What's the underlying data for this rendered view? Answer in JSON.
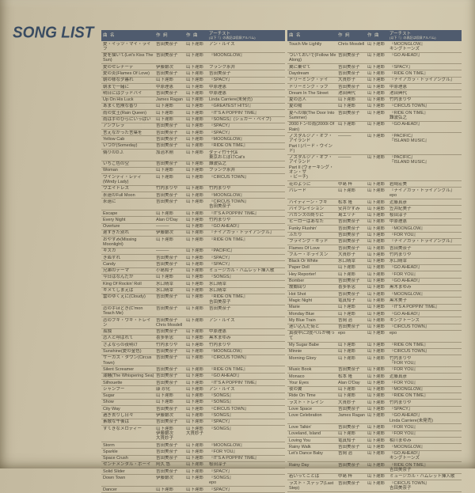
{
  "page": {
    "title": "SONG LIST"
  },
  "colors": {
    "paper": "#ccc2a8",
    "header_band": "#4f5b6e",
    "header_text": "#d9d3bd",
    "body_text": "#474236",
    "logo": "#3a4c62"
  },
  "table": {
    "headers": {
      "song": "曲 名",
      "lyrics": "作 詞",
      "music": "作 曲",
      "artist_line1": "アーチスト",
      "artist_line2": "(以下『』の表記は収録アルバム)"
    },
    "left_rows": [
      {
        "t": "愛・イッツ・マイ・ライフ",
        "l": "吉田美奈子",
        "c": "山下達郎",
        "a": "アン・ルイス"
      },
      {
        "t": "愛を描いて(Let's Kiss The Sun)",
        "l": "吉田美奈子",
        "c": "山下達郎",
        "a": "『MOONGLOW』"
      },
      {
        "t": "愛のセレナーデ",
        "l": "伊藤銀次",
        "c": "山下達郎",
        "a": "フランク永井"
      },
      {
        "t": "愛の炎(Flames Of Love)",
        "l": "吉田美奈子",
        "c": "山下達郎",
        "a": "吉田美奈子"
      },
      {
        "t": "朝の様な夕暮れ",
        "l": "山下達郎",
        "c": "山下達郎",
        "a": "『SPACY』"
      },
      {
        "t": "朝まで一緒に",
        "l": "中原理恵",
        "c": "山下達郎",
        "a": "中原理恵"
      },
      {
        "t": "明日にはグッドバイ",
        "l": "吉田美奈子",
        "c": "山下達郎",
        "a": "中原理恵"
      },
      {
        "t": "Up On His Luck",
        "l": "James Ragan",
        "c": "山下達郎",
        "a": "Linda Carriere(未発売)"
      },
      {
        "t": "あまく危険な香り",
        "l": "山下達郎",
        "c": "山下達郎",
        "a": "『GREATEST HITS!』"
      },
      {
        "t": "雨の女王(Rain Queen)",
        "l": "山下達郎",
        "c": "山下達郎",
        "a": "『IT'S A POPPIN' TIME』"
      },
      {
        "t": "雨は手のひらにいっぱい",
        "l": "山下達郎",
        "c": "山下達郎",
        "a": "『SONGS』(シュガー・ベイブ)"
      },
      {
        "t": "アンブレラ",
        "l": "吉田美奈子",
        "c": "山下達郎",
        "a": "『SPACY』"
      },
      {
        "t": "言えなかった言葉を",
        "l": "吉田美奈子",
        "c": "山下達郎",
        "a": "『SPACY』"
      },
      {
        "t": "Yellow Cab",
        "l": "吉田美奈子",
        "c": "山下達郎",
        "a": "『MOONGLOW』"
      },
      {
        "t": "いつか(Someday)",
        "l": "吉田美奈子",
        "c": "山下達郎",
        "a": "『RIDE ON TIME』"
      },
      {
        "t": "偽りのD.J.",
        "l": "加治木剛",
        "c": "山下達郎",
        "a": "ダディ竹千代&\n東京おとぼけCat's"
      },
      {
        "t": "いちご色の空",
        "l": "吉田美奈子",
        "c": "山下達郎",
        "a": "難波弘之"
      },
      {
        "t": "Woman",
        "l": "山下達郎",
        "c": "山下達郎",
        "a": "フランク永井"
      },
      {
        "t": "ウインディ・レディ(Windy Lady)",
        "l": "山下達郎",
        "c": "山下達郎",
        "a": "『CIRCUS TOWN』"
      },
      {
        "t": "ウエイトレス",
        "l": "竹内まりや",
        "c": "山下達郎",
        "a": "竹内まりや"
      },
      {
        "t": "永遠のFull Moon",
        "l": "吉田美奈子",
        "c": "山下達郎",
        "a": "『MOONGLOW』"
      },
      {
        "t": "永遠に",
        "l": "吉田美奈子",
        "c": "山下達郎",
        "a": "『CIRCUS TOWN』\n吉田美奈子"
      },
      {
        "t": "Escape",
        "l": "山下達郎",
        "c": "山下達郎",
        "a": "『IT'S A POPPIN' TIME』"
      },
      {
        "t": "Every Night",
        "l": "Alan O'Day",
        "c": "山下達郎",
        "a": "竹内まりや"
      },
      {
        "t": "Overture",
        "l": "―――",
        "c": "山下達郎",
        "a": "『GO AHEAD!』"
      },
      {
        "t": "遅すぎた別れ",
        "l": "伊藤銀次",
        "c": "山下達郎",
        "a": "『ナイアガラ・トライアングル』"
      },
      {
        "t": "おやすみ(Missing Moonlight)",
        "l": "山下達郎",
        "c": "山下達郎",
        "a": "『RIDE ON TIME』"
      },
      {
        "t": "キスカ",
        "l": "―――",
        "c": "山下達郎",
        "a": "『PACIFIC』"
      },
      {
        "t": "きぬずれ",
        "l": "吉田美奈子",
        "c": "山下達郎",
        "a": "『SPACY』"
      },
      {
        "t": "Candy",
        "l": "吉田美奈子",
        "c": "山下達郎",
        "a": "『SPACY』"
      },
      {
        "t": "兄弟のテーマ",
        "l": "小島和子",
        "c": "山下達郎",
        "a": "ミュージカル・ハムレット挿入歌"
      },
      {
        "t": "今日はなんだか",
        "l": "山下達郎",
        "c": "山下達郎",
        "a": "『SONGS』"
      },
      {
        "t": "King Of Rockin' Roll",
        "l": "水口晴幸",
        "c": "山下達郎",
        "a": "水口晴幸"
      },
      {
        "t": "キメてしまえば",
        "l": "水口晴幸",
        "c": "山下達郎",
        "a": "水口晴幸"
      },
      {
        "t": "雲のゆくえに(Cloudy)",
        "l": "吉田美奈子",
        "c": "山下達郎",
        "a": "『RIDE ON TIME』\n吉田美奈子"
      },
      {
        "t": "恋の手ほどき(C'mon Teach Me)",
        "l": "吉田美奈子",
        "c": "山下達郎",
        "a": "吉田美奈子"
      },
      {
        "t": "恋のブギ・ウギ・トレイン",
        "l": "吉田美奈子\nChris Mosdell",
        "c": "山下達郎",
        "a": "アン・ルイス"
      },
      {
        "t": "孤独",
        "l": "吉田美奈子",
        "c": "山下達郎",
        "a": "中原理恵"
      },
      {
        "t": "恋人と呼ばれて",
        "l": "喜多条忠",
        "c": "山下達郎",
        "a": "黒木まゆみ"
      },
      {
        "t": "さよならの夜明け",
        "l": "竹内まりや",
        "c": "山下達郎",
        "a": "竹内まりや"
      },
      {
        "t": "Sunshine(愛の金色)",
        "l": "吉田美奈子",
        "c": "山下達郎",
        "a": "『MOONGLOW』"
      },
      {
        "t": "サーカス・タウン(Circus Town)",
        "l": "吉田美奈子",
        "c": "山下達郎",
        "a": "『CIRCUS TOWN』"
      },
      {
        "t": "Silent Screamer",
        "l": "吉田美奈子",
        "c": "山下達郎",
        "a": "『RIDE ON TIME』"
      },
      {
        "t": "潮騒(The Whispering Sea)",
        "l": "吉田美奈子",
        "c": "山下達郎",
        "a": "『GO AHEAD!』"
      },
      {
        "t": "Silhouette",
        "l": "吉田美奈子",
        "c": "山下達郎",
        "a": "『IT'S A POPPIN' TIME』"
      },
      {
        "t": "シャンプー",
        "l": "康 珍化",
        "c": "山下達郎",
        "a": "アン・ルイス"
      },
      {
        "t": "Sugar",
        "l": "山下達郎",
        "c": "山下達郎",
        "a": "『SONGS』"
      },
      {
        "t": "Show",
        "l": "山下達郎",
        "c": "山下達郎",
        "a": "『SONGS』"
      },
      {
        "t": "City Way",
        "l": "吉田美奈子",
        "c": "山下達郎",
        "a": "『CIRCUS TOWN』"
      },
      {
        "t": "過ぎ去りし日々",
        "l": "伊藤銀次",
        "c": "山下達郎",
        "a": "『SONGS』"
      },
      {
        "t": "素敵な午後は",
        "l": "吉田美奈子",
        "c": "山下達郎",
        "a": "『SPACY』"
      },
      {
        "t": "すてきなメロディー",
        "l": "山下達郎\n伊藤銀次\n大貫妙子",
        "c": "山下達郎\n大貫妙子",
        "a": "『SONGS』"
      },
      {
        "t": "Storm",
        "l": "吉田美奈子",
        "c": "山下達郎",
        "a": "『MOONGLOW』"
      },
      {
        "t": "Sparkle",
        "l": "吉田美奈子",
        "c": "山下達郎",
        "a": "『FOR YOU』"
      },
      {
        "t": "Space Crush",
        "l": "吉田美奈子",
        "c": "山下達郎",
        "a": "『IT'S A POPPIN' TIME』"
      },
      {
        "t": "センチメンタル・ボーイ",
        "l": "阿久 悠",
        "c": "山下達郎",
        "a": "桜田淳子"
      },
      {
        "t": "Solid Slider",
        "l": "吉田美奈子",
        "c": "山下達郎",
        "a": "『SPACY』"
      },
      {
        "t": "Down Town",
        "l": "伊藤銀次",
        "c": "山下達郎",
        "a": "『SONGS』\nepo"
      },
      {
        "t": "Dancer",
        "l": "山下達郎",
        "c": "山下達郎",
        "a": "『SPACY』"
      }
    ],
    "right_rows": [
      {
        "t": "Touch Me Lightly",
        "l": "Chris Mosdell",
        "c": "山下達郎",
        "a": "『MOONGLOW』\nキングトーンズ"
      },
      {
        "t": "ついておいで(Follow Me Along)",
        "l": "吉田美奈子",
        "c": "山下達郎",
        "a": "『GO AHEAD!』"
      },
      {
        "t": "翼に乗せて",
        "l": "吉田美奈子",
        "c": "山下達郎",
        "a": "『SPACY』"
      },
      {
        "t": "Daydream",
        "l": "吉田美奈子",
        "c": "山下達郎",
        "a": "『RIDE ON TIME』"
      },
      {
        "t": "ドリーミング・デイ",
        "l": "大貫妙子",
        "c": "山下達郎",
        "a": "『ナイアガラ・トライアングル』"
      },
      {
        "t": "ドリーミング・ラブ",
        "l": "吉田美奈子",
        "c": "山下達郎",
        "a": "中原理恵"
      },
      {
        "t": "Dream In The Street",
        "l": "池田典代",
        "c": "山下達郎",
        "a": "池田典代"
      },
      {
        "t": "夏の恋人",
        "l": "山下達郎",
        "c": "山下達郎",
        "a": "竹内まりや"
      },
      {
        "t": "夏の陽",
        "l": "山下達郎",
        "c": "山下達郎",
        "a": "『CIRCUS TOWN』"
      },
      {
        "t": "夏への扉(The Door Into Summer)",
        "l": "吉田美奈子",
        "c": "山下達郎",
        "a": "『RIDE ON TIME』\n難波弘之"
      },
      {
        "t": "2000トンの雨(2000t Of Rain)",
        "l": "山下達郎",
        "c": "山下達郎",
        "a": "『GO AHEAD!』"
      },
      {
        "t": "ノスタルジア・オブ・アイランド\nPart I (バード・ウインド)",
        "l": "―――",
        "c": "山下達郎",
        "a": "『PACIFIC』\n『ISLAND MUSIC』"
      },
      {
        "t": "ノスタルジア・オブ・アイランド\nPart II (ウォーキング・オン・ザ\n・ビーチ)",
        "l": "―――",
        "c": "山下達郎",
        "a": "『PACIFIC』\n『ISLAND MUSIC』"
      },
      {
        "t": "花のように",
        "l": "中島 梓",
        "c": "山下達郎",
        "a": "岩崎宏美"
      },
      {
        "t": "パレード",
        "l": "山下達郎",
        "c": "山下達郎",
        "a": "『ナイアガラ・トライアングル』\nepo"
      },
      {
        "t": "ハイティーン・ブギ",
        "l": "松本 隆",
        "c": "山下達郎",
        "a": "近藤真彦"
      },
      {
        "t": "バイブレイション",
        "l": "安井かずみ",
        "c": "山下達郎",
        "a": "笠井紀美子"
      },
      {
        "t": "バカンスの終りに",
        "l": "島エリナ",
        "c": "山下達郎",
        "a": "桜田淳子"
      },
      {
        "t": "ヒーローはあなた",
        "l": "吉田美奈子",
        "c": "山下達郎",
        "a": "中原理恵"
      },
      {
        "t": "Funky Flushin'",
        "l": "吉田美奈子",
        "c": "山下達郎",
        "a": "『MOONGLOW』"
      },
      {
        "t": "ふたり",
        "l": "吉田美奈子",
        "c": "山下達郎",
        "a": "『FOR YOU』"
      },
      {
        "t": "フライング・キッド",
        "l": "吉田美奈子",
        "c": "山下達郎",
        "a": "『ナイアガラ・トライアングル』"
      },
      {
        "t": "Flames Of Love",
        "l": "吉田美奈子",
        "c": "山下達郎",
        "a": "吉田美奈子"
      },
      {
        "t": "ブルー・ホライズン",
        "l": "大貫妙子",
        "c": "山下達郎",
        "a": "竹内まりや"
      },
      {
        "t": "Black Or White",
        "l": "水口晴幸",
        "c": "山下達郎",
        "a": "水口晴幸"
      },
      {
        "t": "Paper Doll",
        "l": "山下達郎",
        "c": "山下達郎",
        "a": "『GO AHEAD!』"
      },
      {
        "t": "Hey Reporter!",
        "l": "山下達郎",
        "c": "山下達郎",
        "a": "『FOR YOU』"
      },
      {
        "t": "Bomber",
        "l": "吉田美奈子",
        "c": "山下達郎",
        "a": "『GO AHEAD!』"
      },
      {
        "t": "故郷回り",
        "l": "喜多条忠",
        "c": "山下達郎",
        "a": "黒木まゆみ"
      },
      {
        "t": "Hot Shot",
        "l": "吉田美奈子",
        "c": "山下達郎",
        "a": "『MOONGLOW』"
      },
      {
        "t": "Magic Night",
        "l": "竜真知子",
        "c": "山下達郎",
        "a": "黒木美子"
      },
      {
        "t": "Marie",
        "l": "山下達郎",
        "c": "山下達郎",
        "a": "『IT'S A POPPIN' TIME』"
      },
      {
        "t": "Monday Blue",
        "l": "山下達郎",
        "c": "山下達郎",
        "a": "『GO AHEAD!』"
      },
      {
        "t": "My Blue Train",
        "l": "吉岡 治",
        "c": "山下達郎",
        "a": "キングトーンズ"
      },
      {
        "t": "迷い込んだ街と",
        "l": "吉田美奈子",
        "c": "山下達郎",
        "a": "『CIRCUS TOWN』"
      },
      {
        "t": "真夜中に2度ベルが鳴って",
        "l": "epo",
        "c": "山下達郎",
        "a": "epo"
      },
      {
        "t": "My Sugar Babe",
        "l": "山下達郎",
        "c": "山下達郎",
        "a": "『RIDE ON TIME』"
      },
      {
        "t": "Minnie",
        "l": "山下達郎",
        "c": "山下達郎",
        "a": "『CIRCUS TOWN』"
      },
      {
        "t": "Morning Glory",
        "l": "山下達郎",
        "c": "山下達郎",
        "a": "竹内まりや\n『FOR YOU』"
      },
      {
        "t": "Music Book",
        "l": "吉田美奈子",
        "c": "山下達郎",
        "a": "『FOR YOU』"
      },
      {
        "t": "Monaco",
        "l": "松本 隆",
        "c": "山下達郎",
        "a": "近藤真彦"
      },
      {
        "t": "Your Eyes",
        "l": "Alan O'Day",
        "c": "山下達郎",
        "a": "『FOR YOU』"
      },
      {
        "t": "夜の翼",
        "l": "山下達郎",
        "c": "山下達郎",
        "a": "『MOONGLOW』"
      },
      {
        "t": "Ride On Time",
        "l": "山下達郎",
        "c": "山下達郎",
        "a": "『RIDE ON TIME』"
      },
      {
        "t": "ラスト・トレイン",
        "l": "大貫妙子",
        "c": "山下達郎",
        "a": "竹内まりや"
      },
      {
        "t": "Love Space",
        "l": "吉田美奈子",
        "c": "山下達郎",
        "a": "『SPACY』"
      },
      {
        "t": "Love Celebration",
        "l": "James Ragan",
        "c": "山下達郎",
        "a": "『GO AHEAD!』\nLinda Carriere(未発売)"
      },
      {
        "t": "Love Talkin'",
        "l": "吉田美奈子",
        "c": "山下達郎",
        "a": "『FOR YOU』"
      },
      {
        "t": "Loveland, Island",
        "l": "山下達郎",
        "c": "山下達郎",
        "a": "『FOR YOU』"
      },
      {
        "t": "Loving You",
        "l": "竜真知子",
        "c": "山下達郎",
        "a": "相川まゆみ"
      },
      {
        "t": "Rainy Walk",
        "l": "吉田美奈子",
        "c": "山下達郎",
        "a": "『MOONGLOW』"
      },
      {
        "t": "Let's Dance Baby",
        "l": "吉岡 治",
        "c": "山下達郎",
        "a": "『GO AHEAD!』\nキングトーンズ"
      },
      {
        "t": "Rainy Day",
        "l": "吉田美奈子",
        "c": "山下達郎",
        "a": "『RIDE ON TIME』\n吉田美奈子"
      },
      {
        "t": "若いってことは",
        "l": "中島 梓",
        "c": "山下達郎",
        "a": "ミュージカル・ハムレット挿入歌"
      },
      {
        "t": "ラスト・ステップ(Last Step)",
        "l": "吉田美奈子",
        "c": "山下達郎",
        "a": "『CIRCUS TOWN』\n吉田美奈子"
      }
    ]
  }
}
